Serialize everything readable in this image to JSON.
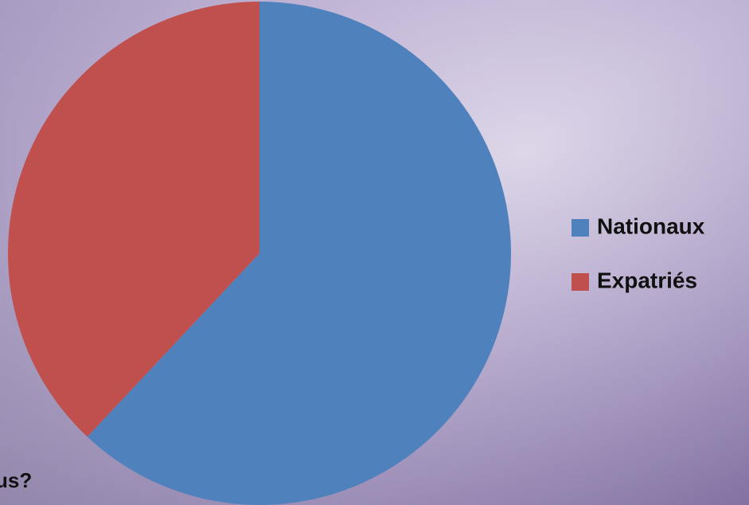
{
  "chart_data": {
    "type": "pie",
    "categories": [
      "Nationaux",
      "Expatriés"
    ],
    "values": [
      62,
      38
    ],
    "colors": [
      "#4f81bd",
      "#c0504d"
    ],
    "legend": "right",
    "annotation": "us?"
  }
}
